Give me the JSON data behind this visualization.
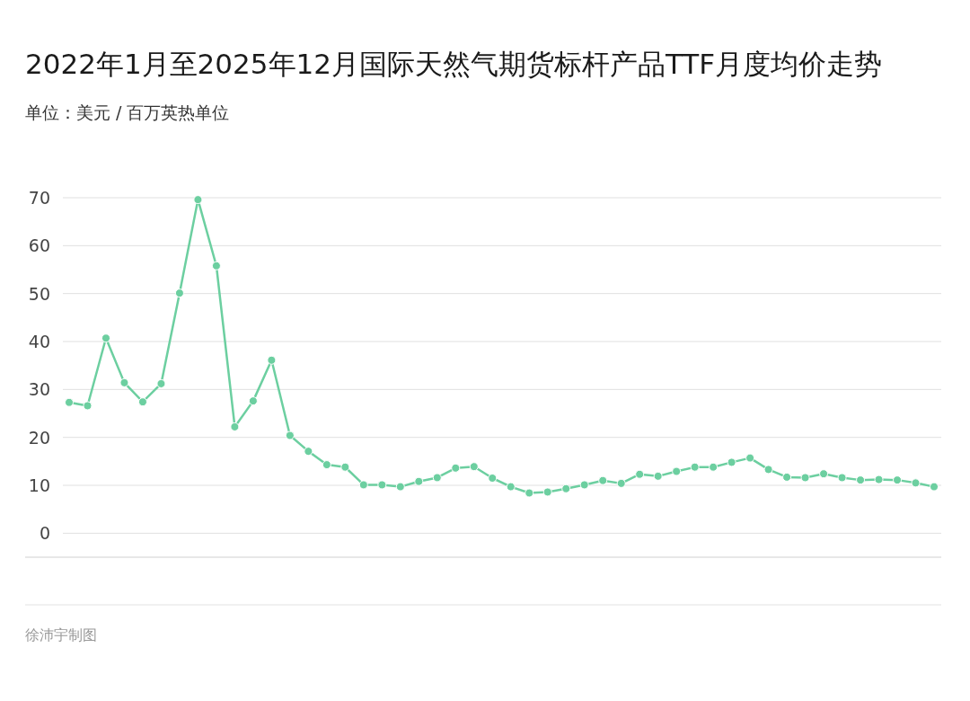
{
  "chart_data": {
    "type": "line",
    "title": "2022年1月至2025年12月国际天然气期货标杆产品TTF月度均价走势",
    "subtitle": "单位：美元 / 百万英热单位",
    "annotations": [
      "徐沛宇制图"
    ],
    "categories": [
      null,
      null,
      null,
      null,
      null,
      null,
      null,
      null,
      null,
      null,
      null,
      null,
      null,
      null,
      null,
      null,
      null,
      null,
      null,
      null,
      null,
      null,
      null,
      null,
      null,
      null,
      null,
      null,
      null,
      null,
      null,
      null,
      null,
      null,
      null,
      null,
      null,
      null,
      null,
      null,
      null,
      null,
      null,
      null,
      null,
      null,
      null,
      null
    ],
    "series": [
      {
        "color": "#6ccfa0",
        "values": [
          27.3,
          26.6,
          40.7,
          31.4,
          27.4,
          31.2,
          50.1,
          69.6,
          55.8,
          22.2,
          27.6,
          36.1,
          20.4,
          17.1,
          14.3,
          13.8,
          10.1,
          10.1,
          9.7,
          10.8,
          11.6,
          13.6,
          13.9,
          11.5,
          9.7,
          8.4,
          8.6,
          9.3,
          10.1,
          11.0,
          10.4,
          12.3,
          11.9,
          12.9,
          13.8,
          13.8,
          14.8,
          15.7,
          13.3,
          11.7,
          11.6,
          12.4,
          11.6,
          11.1,
          11.2,
          11.1,
          10.5,
          9.7
        ]
      }
    ],
    "ylim": [
      -5,
      70
    ],
    "yticks": [
      0,
      10,
      20,
      30,
      40,
      50,
      60,
      70
    ],
    "grid": "y",
    "tick_labels": "y",
    "marker": "circle",
    "line_style": "solid"
  }
}
